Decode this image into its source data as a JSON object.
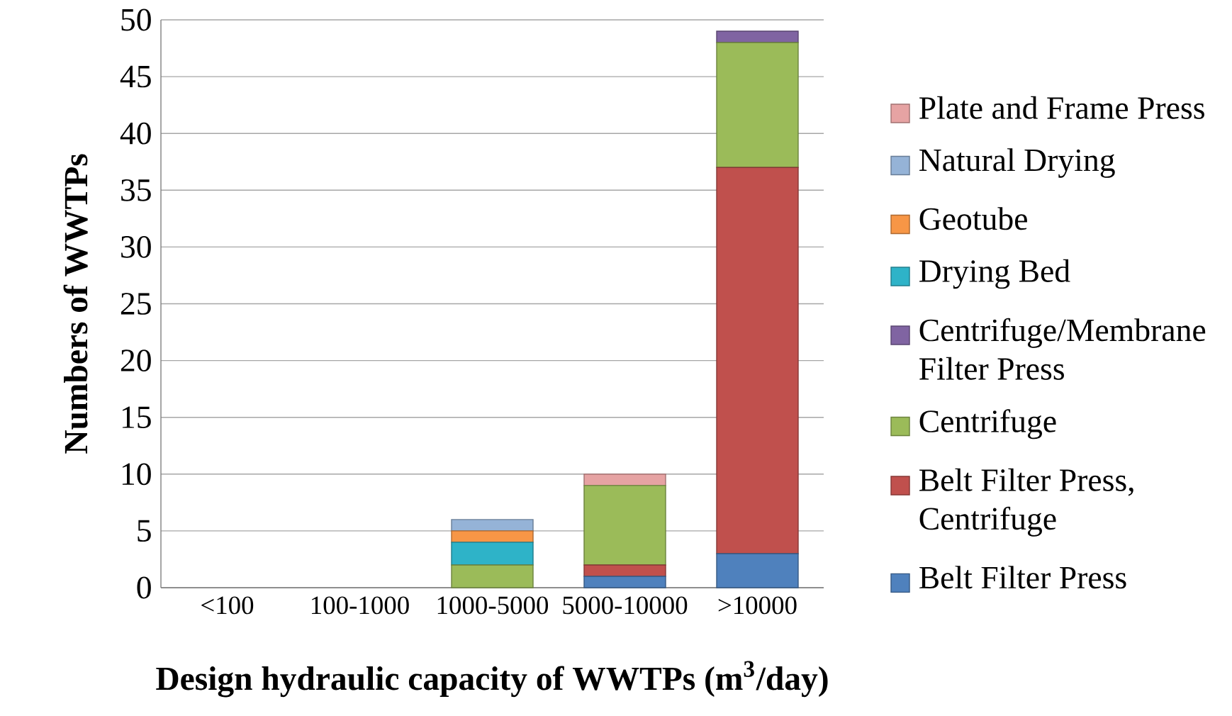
{
  "chart_data": {
    "type": "bar",
    "stacked": true,
    "xlabel": "Design hydraulic capacity of WWTPs (m$^{3}$/day)",
    "ylabel": "Numbers of WWTPs",
    "categories": [
      "<100",
      "100-1000",
      "1000-5000",
      "5000-10000",
      ">10000"
    ],
    "ylim": [
      0,
      50
    ],
    "yticks": [
      0,
      5,
      10,
      15,
      20,
      25,
      30,
      35,
      40,
      45,
      50
    ],
    "grid": "y",
    "legend": "right",
    "series": [
      {
        "name": "Belt Filter Press",
        "color": "#4f81bd",
        "values": [
          0,
          0,
          0,
          1,
          3
        ]
      },
      {
        "name": "Belt Filter Press, Centrifuge",
        "color": "#c0504d",
        "values": [
          0,
          0,
          0,
          1,
          34
        ]
      },
      {
        "name": "Centrifuge",
        "color": "#9bbb59",
        "values": [
          0,
          0,
          2,
          7,
          11
        ]
      },
      {
        "name": "Centrifuge/Membrane Filter Press",
        "color": "#8064a2",
        "values": [
          0,
          0,
          0,
          0,
          1
        ]
      },
      {
        "name": "Drying Bed",
        "color": "#2eb3c8",
        "values": [
          0,
          0,
          2,
          0,
          0
        ]
      },
      {
        "name": "Geotube",
        "color": "#f79646",
        "values": [
          0,
          0,
          1,
          0,
          0
        ]
      },
      {
        "name": "Natural Drying",
        "color": "#95b3d7",
        "values": [
          0,
          0,
          1,
          0,
          0
        ]
      },
      {
        "name": "Plate and Frame Press",
        "color": "#e6a3a3",
        "values": [
          0,
          0,
          0,
          1,
          0
        ]
      }
    ]
  }
}
